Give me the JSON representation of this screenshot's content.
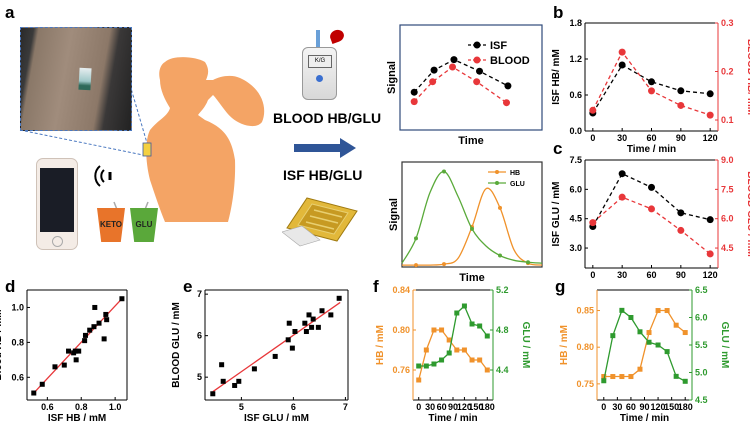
{
  "panel_labels": {
    "a": "a",
    "b": "b",
    "c": "c",
    "d": "d",
    "e": "e",
    "f": "f",
    "g": "g"
  },
  "illustration": {
    "cup_keto": "KETO",
    "cup_glu": "GLU",
    "meter_label": "K/G",
    "blood_label": "BLOOD HB/GLU",
    "isf_label": "ISF HB/GLU"
  },
  "colors": {
    "black": "#000000",
    "red": "#e8373a",
    "orange": "#f0922b",
    "green": "#2e9a2e",
    "person": "#f4a465",
    "arrow": "#2f5597"
  },
  "chart_data": [
    {
      "id": "a_top",
      "type": "line",
      "xlabel": "Time",
      "ylabel": "Signal",
      "xlim": [
        0,
        1
      ],
      "ylim": [
        0,
        1
      ],
      "legend": [
        "ISF",
        "BLOOD"
      ],
      "legend_position": "top-right",
      "series": [
        {
          "name": "ISF",
          "color": "#000000",
          "marker": "circle",
          "dashed": true,
          "x": [
            0.1,
            0.24,
            0.38,
            0.56,
            0.76
          ],
          "y": [
            0.36,
            0.57,
            0.67,
            0.56,
            0.42
          ]
        },
        {
          "name": "BLOOD",
          "color": "#e8373a",
          "marker": "circle",
          "dashed": true,
          "x": [
            0.1,
            0.23,
            0.37,
            0.54,
            0.75
          ],
          "y": [
            0.27,
            0.46,
            0.6,
            0.46,
            0.26
          ]
        }
      ]
    },
    {
      "id": "a_bottom",
      "type": "line",
      "xlabel": "Time",
      "ylabel": "Signal",
      "xlim": [
        0,
        1
      ],
      "ylim": [
        0,
        1.1
      ],
      "legend": [
        "HB",
        "GLU"
      ],
      "legend_position": "top-right",
      "series": [
        {
          "name": "HB",
          "color": "#f0922b",
          "marker": "circle",
          "x": [
            0,
            0.1,
            0.2,
            0.3,
            0.4,
            0.5,
            0.6,
            0.7,
            0.8,
            0.9,
            1.0
          ],
          "y": [
            0.02,
            0.02,
            0.02,
            0.03,
            0.09,
            0.42,
            0.82,
            0.62,
            0.18,
            0.04,
            0.02
          ]
        },
        {
          "name": "GLU",
          "color": "#5aaa3a",
          "marker": "circle",
          "x": [
            0,
            0.1,
            0.2,
            0.3,
            0.4,
            0.5,
            0.6,
            0.7,
            0.8,
            0.9,
            1.0
          ],
          "y": [
            0.04,
            0.3,
            0.78,
            1.0,
            0.74,
            0.4,
            0.22,
            0.12,
            0.07,
            0.05,
            0.04
          ]
        }
      ]
    },
    {
      "id": "b",
      "type": "line",
      "xlabel": "Time / min",
      "ylabel": "ISF HB/ mM",
      "y2label": "BLOOD HB/ mM",
      "xlim": [
        -8,
        128
      ],
      "ylim": [
        0,
        1.8
      ],
      "y2lim": [
        0.0773,
        0.3
      ],
      "xticks": [
        0,
        30,
        60,
        90,
        120
      ],
      "yticks": [
        "0.0",
        "0.6",
        "1.2",
        "1.8"
      ],
      "y2ticks": [
        "0.1",
        "0.2",
        "0.3"
      ],
      "series": [
        {
          "name": "ISF",
          "color": "#000000",
          "axis": "left",
          "marker": "circle",
          "dashed": true,
          "x": [
            0,
            30,
            60,
            90,
            120
          ],
          "y": [
            0.3,
            1.1,
            0.82,
            0.67,
            0.62
          ]
        },
        {
          "name": "BLOOD",
          "color": "#e8373a",
          "axis": "right",
          "marker": "circle",
          "dashed": true,
          "x": [
            0,
            30,
            60,
            90,
            120
          ],
          "y": [
            0.12,
            0.24,
            0.16,
            0.13,
            0.11
          ]
        }
      ]
    },
    {
      "id": "c",
      "type": "line",
      "xlabel": "",
      "ylabel": "ISF GLU / mM",
      "y2label": "BLOOD GLU / mM",
      "xlim": [
        -8,
        128
      ],
      "ylim": [
        1.98,
        7.5
      ],
      "y2lim": [
        3.48,
        9.0
      ],
      "xticks": [
        0,
        30,
        60,
        90,
        120
      ],
      "yticks": [
        "3.0",
        "4.5",
        "6.0",
        "7.5"
      ],
      "y2ticks": [
        "4.5",
        "6.0",
        "7.5",
        "9.0"
      ],
      "series": [
        {
          "name": "ISF",
          "color": "#000000",
          "axis": "left",
          "marker": "circle",
          "dashed": true,
          "x": [
            0,
            30,
            60,
            90,
            120
          ],
          "y": [
            4.1,
            6.8,
            6.1,
            4.8,
            4.45
          ]
        },
        {
          "name": "BLOOD",
          "color": "#e8373a",
          "axis": "right",
          "marker": "circle",
          "dashed": true,
          "x": [
            0,
            30,
            60,
            90,
            120
          ],
          "y": [
            5.8,
            7.1,
            6.5,
            5.4,
            4.2
          ]
        }
      ]
    },
    {
      "id": "d",
      "type": "scatter",
      "xlabel": "ISF HB / mM",
      "ylabel": "Blood HB / mM",
      "xlim": [
        0.48,
        1.07
      ],
      "ylim": [
        0.47,
        1.1
      ],
      "xticks": [
        "0.6",
        "0.8",
        "1.0"
      ],
      "yticks": [
        "0.6",
        "0.8",
        "1.0"
      ],
      "fit": {
        "color": "#e8373a",
        "x": [
          0.52,
          1.04
        ],
        "y": [
          0.51,
          1.05
        ]
      },
      "series": [
        {
          "name": "data",
          "color": "#000000",
          "marker": "square",
          "x": [
            0.52,
            0.57,
            0.645,
            0.7,
            0.725,
            0.755,
            0.765,
            0.77,
            0.785,
            0.82,
            0.825,
            0.85,
            0.875,
            0.88,
            0.905,
            0.935,
            0.945,
            0.95,
            1.04
          ],
          "y": [
            0.51,
            0.56,
            0.66,
            0.67,
            0.75,
            0.74,
            0.75,
            0.7,
            0.75,
            0.81,
            0.84,
            0.87,
            0.89,
            1.0,
            0.91,
            0.82,
            0.96,
            0.93,
            1.05
          ]
        }
      ]
    },
    {
      "id": "e",
      "type": "scatter",
      "xlabel": "ISF GLU / mM",
      "ylabel": "BLOOD GLU / mM",
      "xlim": [
        4.3,
        7.05
      ],
      "ylim": [
        4.45,
        7.1
      ],
      "xticks": [
        "5",
        "6",
        "7"
      ],
      "yticks": [
        "5",
        "6",
        "7"
      ],
      "fit": {
        "color": "#e8373a",
        "x": [
          4.45,
          6.9
        ],
        "y": [
          4.65,
          6.8
        ]
      },
      "series": [
        {
          "name": "data",
          "color": "#000000",
          "marker": "square",
          "x": [
            4.45,
            4.62,
            4.65,
            4.87,
            4.95,
            5.25,
            5.65,
            5.9,
            5.92,
            5.98,
            6.03,
            6.22,
            6.25,
            6.3,
            6.35,
            6.38,
            6.48,
            6.55,
            6.72,
            6.88
          ],
          "y": [
            4.6,
            5.3,
            4.9,
            4.8,
            4.9,
            5.2,
            5.5,
            5.9,
            6.3,
            5.7,
            6.1,
            6.3,
            6.1,
            6.5,
            6.2,
            6.4,
            6.2,
            6.6,
            6.5,
            6.9
          ]
        }
      ]
    },
    {
      "id": "f",
      "type": "line",
      "xlabel": "Time / min",
      "ylabel": "HB / mM",
      "y2label": "GLU / mM",
      "xlim": [
        -15,
        195
      ],
      "ylim": [
        0.73,
        0.84
      ],
      "y2lim": [
        4.1,
        5.2
      ],
      "xticks": [
        0,
        30,
        60,
        90,
        120,
        150,
        180
      ],
      "yticks": [
        "0.76",
        "0.80",
        "0.84"
      ],
      "y2ticks": [
        "4.4",
        "4.8",
        "5.2"
      ],
      "ylabel_color": "#f0922b",
      "y2label_color": "#2e9a2e",
      "series": [
        {
          "name": "HB",
          "color": "#f0922b",
          "axis": "left",
          "marker": "square",
          "x": [
            0,
            20,
            40,
            60,
            80,
            100,
            120,
            140,
            160,
            180
          ],
          "y": [
            0.75,
            0.78,
            0.8,
            0.8,
            0.79,
            0.78,
            0.78,
            0.77,
            0.77,
            0.76
          ]
        },
        {
          "name": "GLU",
          "color": "#2e9a2e",
          "axis": "right",
          "marker": "square",
          "x": [
            0,
            20,
            40,
            60,
            80,
            100,
            120,
            140,
            160,
            180
          ],
          "y": [
            4.44,
            4.44,
            4.46,
            4.5,
            4.57,
            4.97,
            5.04,
            4.86,
            4.84,
            4.74
          ]
        }
      ]
    },
    {
      "id": "g",
      "type": "line",
      "xlabel": "Time / min",
      "ylabel": "HB / mM",
      "y2label": "GLU / mM",
      "xlim": [
        -15,
        195
      ],
      "ylim": [
        0.728,
        0.878
      ],
      "y2lim": [
        4.5,
        6.5
      ],
      "xticks": [
        0,
        30,
        60,
        90,
        120,
        150,
        180
      ],
      "yticks": [
        "0.75",
        "0.80",
        "0.85"
      ],
      "y2ticks": [
        "4.5",
        "5.0",
        "5.5",
        "6.0",
        "6.5"
      ],
      "ylabel_color": "#f0922b",
      "y2label_color": "#2e9a2e",
      "series": [
        {
          "name": "HB",
          "color": "#f0922b",
          "axis": "left",
          "marker": "square",
          "x": [
            0,
            20,
            40,
            60,
            80,
            100,
            120,
            140,
            160,
            180
          ],
          "y": [
            0.76,
            0.76,
            0.76,
            0.76,
            0.77,
            0.82,
            0.85,
            0.85,
            0.83,
            0.82
          ]
        },
        {
          "name": "GLU",
          "color": "#2e9a2e",
          "axis": "right",
          "marker": "square",
          "x": [
            0,
            20,
            40,
            60,
            80,
            100,
            120,
            140,
            160,
            180
          ],
          "y": [
            4.85,
            5.67,
            6.13,
            6.0,
            5.74,
            5.55,
            5.5,
            5.38,
            4.93,
            4.84
          ]
        }
      ]
    }
  ]
}
